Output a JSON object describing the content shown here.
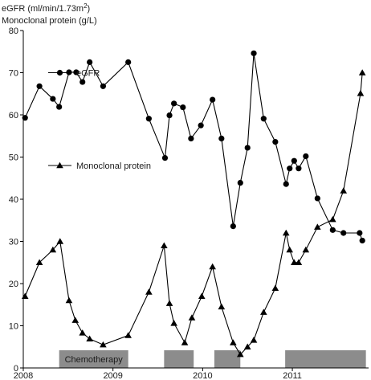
{
  "header": {
    "line1_text": "eGFR (ml/min/1.73m",
    "line1_sup": "2",
    "line1_tail": ")",
    "line2": "Monoclonal protein (g/L)"
  },
  "colors": {
    "series": "#000000",
    "chemo_bar": "#8c8c8c",
    "axis": "#000000"
  },
  "chart_data": {
    "type": "line",
    "x_unit": "year",
    "xlim": [
      2008.0,
      2011.85
    ],
    "ylim": [
      0,
      80
    ],
    "yticks": [
      0,
      10,
      20,
      30,
      40,
      50,
      60,
      70,
      80
    ],
    "xticks": [
      {
        "value": 2008,
        "label": "2008"
      },
      {
        "value": 2009,
        "label": "2009"
      },
      {
        "value": 2010,
        "label": "2010"
      },
      {
        "value": 2011,
        "label": "2011"
      }
    ],
    "grid": false,
    "legend": "inside-left",
    "series": [
      {
        "name": "eGFR",
        "marker": "circle",
        "points": [
          [
            2008.02,
            59.3
          ],
          [
            2008.18,
            66.8
          ],
          [
            2008.33,
            63.8
          ],
          [
            2008.4,
            61.9
          ],
          [
            2008.51,
            70.1
          ],
          [
            2008.59,
            70.1
          ],
          [
            2008.66,
            67.8
          ],
          [
            2008.74,
            72.5
          ],
          [
            2008.89,
            66.8
          ],
          [
            2009.17,
            72.5
          ],
          [
            2009.4,
            59.1
          ],
          [
            2009.58,
            49.8
          ],
          [
            2009.63,
            59.9
          ],
          [
            2009.68,
            62.7
          ],
          [
            2009.78,
            61.8
          ],
          [
            2009.87,
            54.4
          ],
          [
            2009.98,
            57.5
          ],
          [
            2010.11,
            63.6
          ],
          [
            2010.21,
            54.4
          ],
          [
            2010.34,
            33.6
          ],
          [
            2010.42,
            43.9
          ],
          [
            2010.5,
            52.2
          ],
          [
            2010.57,
            74.6
          ],
          [
            2010.68,
            59.1
          ],
          [
            2010.81,
            53.6
          ],
          [
            2010.93,
            43.6
          ],
          [
            2010.97,
            47.3
          ],
          [
            2011.02,
            49.1
          ],
          [
            2011.07,
            47.3
          ],
          [
            2011.15,
            50.2
          ],
          [
            2011.28,
            40.2
          ],
          [
            2011.45,
            32.7
          ],
          [
            2011.57,
            32.0
          ],
          [
            2011.75,
            32.0
          ],
          [
            2011.78,
            30.2
          ]
        ]
      },
      {
        "name": "Monoclonal protein",
        "marker": "triangle",
        "points": [
          [
            2008.02,
            17.0
          ],
          [
            2008.18,
            25.0
          ],
          [
            2008.33,
            28.0
          ],
          [
            2008.41,
            30.0
          ],
          [
            2008.51,
            16.0
          ],
          [
            2008.58,
            11.3
          ],
          [
            2008.66,
            8.3
          ],
          [
            2008.74,
            6.9
          ],
          [
            2008.89,
            5.5
          ],
          [
            2009.17,
            7.7
          ],
          [
            2009.4,
            18.0
          ],
          [
            2009.57,
            29.0
          ],
          [
            2009.63,
            15.3
          ],
          [
            2009.68,
            10.6
          ],
          [
            2009.8,
            6.0
          ],
          [
            2009.88,
            11.9
          ],
          [
            2009.99,
            17.0
          ],
          [
            2010.11,
            24.0
          ],
          [
            2010.21,
            14.5
          ],
          [
            2010.34,
            6.0
          ],
          [
            2010.42,
            3.2
          ],
          [
            2010.5,
            5.0
          ],
          [
            2010.57,
            6.6
          ],
          [
            2010.68,
            13.2
          ],
          [
            2010.81,
            18.9
          ],
          [
            2010.93,
            32.0
          ],
          [
            2010.97,
            28.0
          ],
          [
            2011.02,
            25.0
          ],
          [
            2011.07,
            25.0
          ],
          [
            2011.15,
            28.0
          ],
          [
            2011.28,
            33.4
          ],
          [
            2011.45,
            35.2
          ],
          [
            2011.57,
            42.0
          ],
          [
            2011.76,
            65.1
          ],
          [
            2011.78,
            70.0
          ]
        ]
      }
    ],
    "legend_entries": [
      {
        "series": "eGFR",
        "label": "eGFR",
        "y": 70
      },
      {
        "series": "Monoclonal protein",
        "label": "Monoclonal protein",
        "y": 48
      }
    ],
    "chemo_periods": [
      {
        "start": 2008.4,
        "end": 2009.17,
        "label": "Chemotherapy"
      },
      {
        "start": 2009.57,
        "end": 2009.9,
        "label": ""
      },
      {
        "start": 2010.13,
        "end": 2010.42,
        "label": ""
      },
      {
        "start": 2010.92,
        "end": 2011.82,
        "label": ""
      }
    ],
    "chemo_band": [
      0,
      4.2
    ]
  }
}
